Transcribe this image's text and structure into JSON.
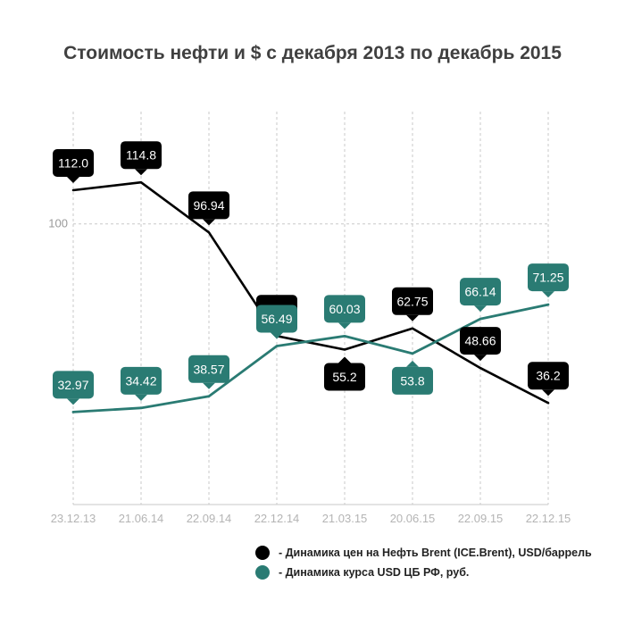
{
  "chart_data": {
    "type": "line",
    "title": "Стоимость нефти и $ с декабря 2013 по декабрь 2015",
    "xlabel": "",
    "ylabel": "",
    "categories": [
      "23.12.13",
      "21.06.14",
      "22.09.14",
      "22.12.14",
      "21.03.15",
      "20.06.15",
      "22.09.15",
      "22.12.15"
    ],
    "y_ticks": [
      "100"
    ],
    "ylim": [
      0,
      140
    ],
    "grid": true,
    "legend_position": "bottom-right",
    "series": [
      {
        "name": "- Динамика цен на Нефть Brent (ICE.Brent), USD/баррель",
        "color": "#000000",
        "values": [
          112.0,
          114.8,
          96.94,
          60.05,
          55.2,
          62.75,
          48.66,
          36.2
        ],
        "labels": [
          "112.0",
          "114.8",
          "96.94",
          "60.05",
          "55.2",
          "62.75",
          "48.66",
          "36.2"
        ],
        "label_side": [
          "above",
          "above",
          "above",
          "above",
          "below",
          "above",
          "above",
          "above"
        ]
      },
      {
        "name": "- Динамика курса USD ЦБ РФ, руб.",
        "color": "#2a7b73",
        "values": [
          32.97,
          34.42,
          38.57,
          56.49,
          60.03,
          53.8,
          66.14,
          71.25
        ],
        "labels": [
          "32.97",
          "34.42",
          "38.57",
          "56.49",
          "60.03",
          "53.8",
          "66.14",
          "71.25"
        ],
        "label_side": [
          "above",
          "above",
          "above",
          "above",
          "above",
          "below",
          "above",
          "above"
        ]
      }
    ]
  }
}
